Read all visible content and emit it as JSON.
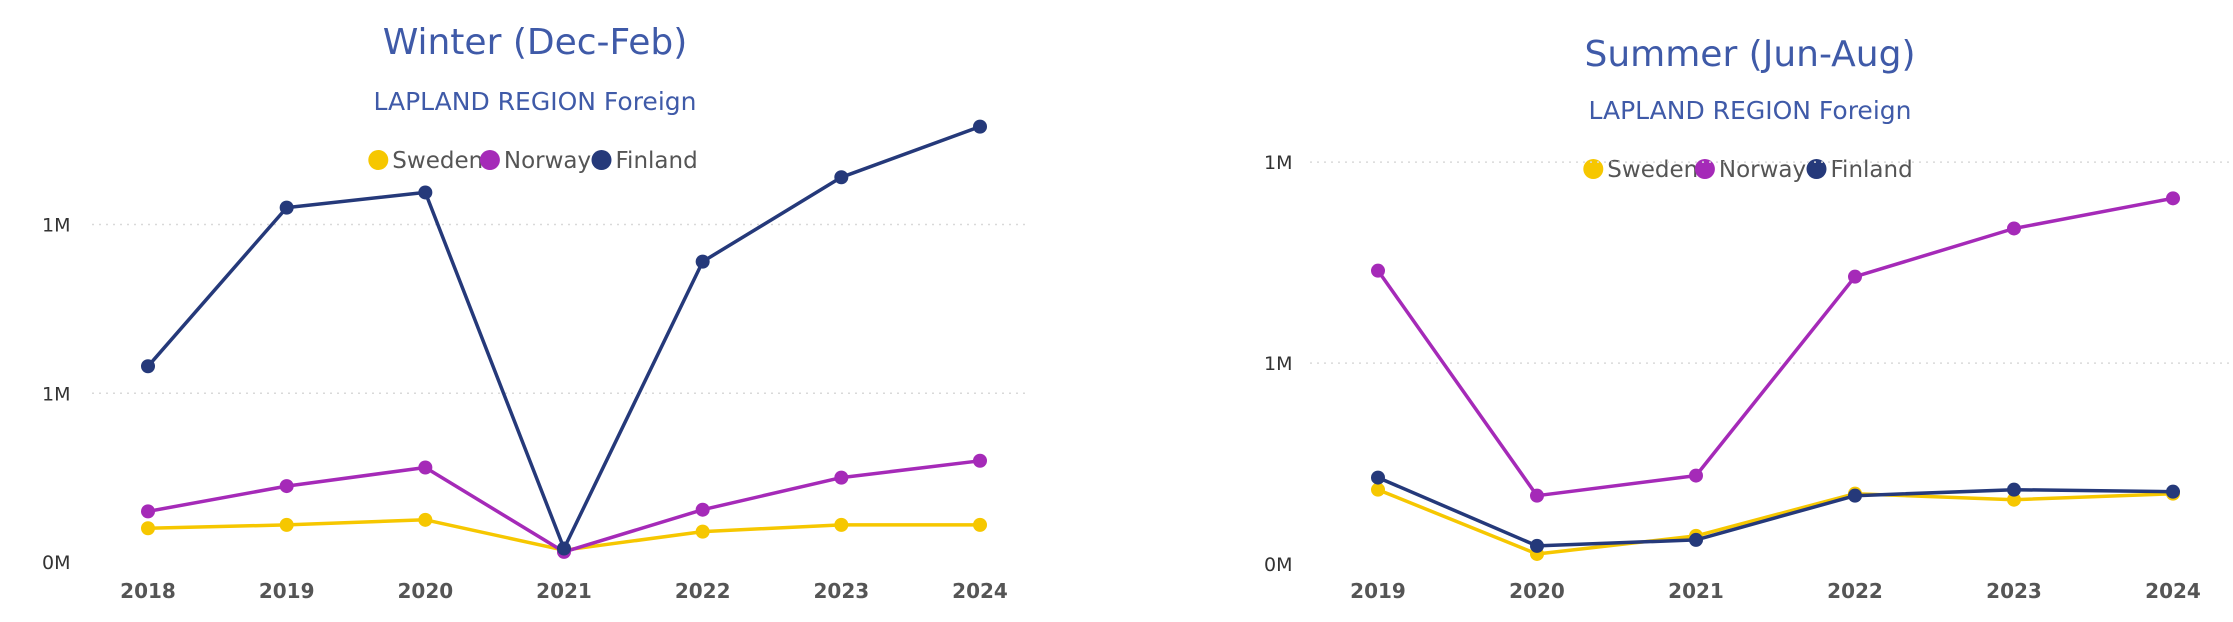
{
  "colors": {
    "sweden": "#F6C700",
    "norway": "#A52AB8",
    "finland": "#25397A",
    "title": "#3F5AA8"
  },
  "chart_data": [
    {
      "type": "line",
      "title": "Winter (Dec-Feb)",
      "subtitle": "LAPLAND REGION Foreign",
      "legend_position": "top-center",
      "grid": true,
      "categories": [
        "2018",
        "2019",
        "2020",
        "2021",
        "2022",
        "2023",
        "2024"
      ],
      "y_ticks": [
        {
          "value": 0,
          "label": "0M"
        },
        {
          "value": 0.5,
          "label": "1M"
        },
        {
          "value": 1.0,
          "label": "1M"
        }
      ],
      "ylim": [
        0,
        1.28
      ],
      "series": [
        {
          "name": "Sweden",
          "color_key": "sweden",
          "values": [
            0.1,
            0.11,
            0.125,
            0.035,
            0.09,
            0.11,
            0.11
          ]
        },
        {
          "name": "Norway",
          "color_key": "norway",
          "values": [
            0.15,
            0.225,
            0.28,
            0.03,
            0.155,
            0.25,
            0.3
          ]
        },
        {
          "name": "Finland",
          "color_key": "finland",
          "values": [
            0.58,
            1.05,
            1.095,
            0.04,
            0.89,
            1.14,
            1.29
          ]
        }
      ]
    },
    {
      "type": "line",
      "title": "Summer (Jun-Aug)",
      "subtitle": "LAPLAND REGION Foreign",
      "legend_position": "top-center",
      "grid": true,
      "categories": [
        "2019",
        "2020",
        "2021",
        "2022",
        "2023",
        "2024"
      ],
      "y_ticks": [
        {
          "value": 0,
          "label": "0M"
        },
        {
          "value": 0.5,
          "label": "1M"
        },
        {
          "value": 1.0,
          "label": "1M"
        }
      ],
      "ylim": [
        0,
        1.08
      ],
      "series": [
        {
          "name": "Sweden",
          "color_key": "sweden",
          "values": [
            0.185,
            0.025,
            0.07,
            0.175,
            0.16,
            0.175
          ]
        },
        {
          "name": "Norway",
          "color_key": "norway",
          "values": [
            0.73,
            0.17,
            0.22,
            0.715,
            0.835,
            0.91
          ]
        },
        {
          "name": "Finland",
          "color_key": "finland",
          "values": [
            0.215,
            0.045,
            0.06,
            0.17,
            0.185,
            0.18
          ]
        }
      ]
    }
  ]
}
